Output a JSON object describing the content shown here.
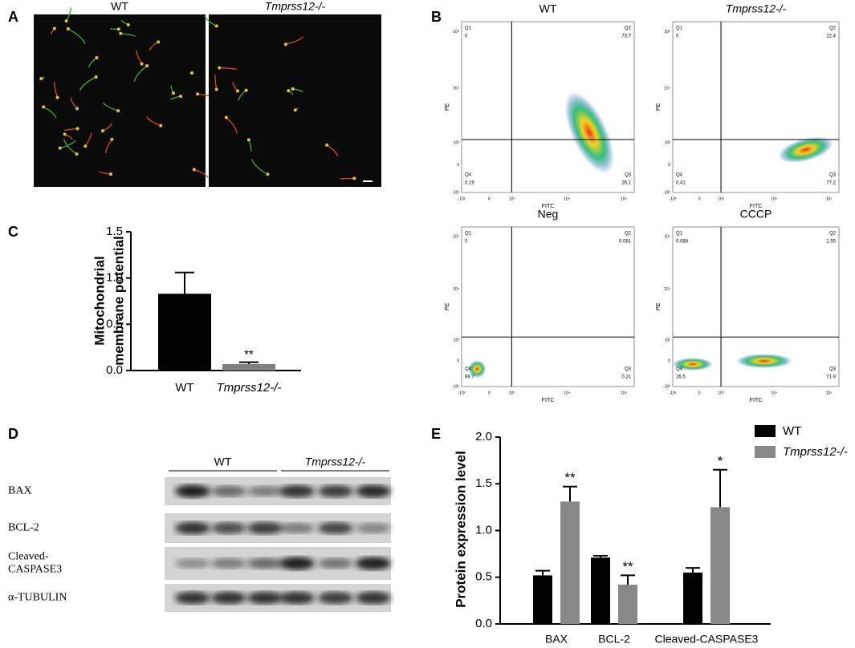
{
  "panel_labels": [
    "A",
    "B",
    "C",
    "D",
    "E"
  ],
  "panel_a": {
    "groups": [
      "WT",
      "Tmprss12-/-"
    ]
  },
  "panel_b": {
    "x_label": "FITC",
    "y_label": "PE",
    "quadrant_names": [
      "Q1",
      "Q2",
      "Q3",
      "Q4"
    ],
    "tick_labels": [
      "-10³",
      "0",
      "10³",
      "10⁴",
      "10⁵"
    ],
    "plots": [
      {
        "title": "WT",
        "quadrants": [
          0,
          73.7,
          26.1,
          0.19
        ]
      },
      {
        "title": "Tmprss12-/-",
        "quadrants": [
          0,
          22.4,
          77.2,
          0.41
        ]
      },
      {
        "title": "Neg",
        "quadrants": [
          0,
          0.081,
          0.21,
          99.7
        ]
      },
      {
        "title": "CCCP",
        "quadrants": [
          0.088,
          1.55,
          71.9,
          26.5
        ]
      }
    ]
  },
  "panel_d": {
    "groups": [
      "WT",
      "Tmprss12-/-"
    ],
    "proteins": [
      [
        "BAX"
      ],
      [
        "BCL-2"
      ],
      [
        "Cleaved-",
        "CASPASE3"
      ],
      [
        "α-TUBULIN"
      ]
    ]
  },
  "chart_data": [
    {
      "type": "bar",
      "y_label": [
        "Mitochondrial",
        "membrane potential"
      ],
      "categories": [
        "WT",
        "Tmprss12-/-"
      ],
      "values": [
        0.83,
        0.07
      ],
      "errors": [
        0.23,
        0.02
      ],
      "colors": [
        "#000000",
        "#808080"
      ],
      "annotations": [
        null,
        "**"
      ],
      "ylim": [
        0,
        1.5
      ],
      "yticks": [
        {
          "value": 0,
          "label": "0.0"
        },
        {
          "value": 0.5,
          "label": "0.5"
        },
        {
          "value": 1,
          "label": "1.0"
        },
        {
          "value": 1.5,
          "label": "1.5"
        }
      ]
    },
    {
      "type": "grouped-bar",
      "y_label": "Protein expression level",
      "categories": [
        "BAX",
        "BCL-2",
        "Cleaved-CASPASE3"
      ],
      "series": [
        {
          "name": "WT",
          "color": "#000000",
          "values": [
            0.52,
            0.71,
            0.55
          ],
          "errors": [
            0.05,
            0.02,
            0.05
          ],
          "annotations": [
            null,
            null,
            null
          ]
        },
        {
          "name": "Tmprss12-/-",
          "color": "#888888",
          "values": [
            1.31,
            0.42,
            1.25
          ],
          "errors": [
            0.16,
            0.1,
            0.4
          ],
          "annotations": [
            "**",
            "**",
            "*"
          ]
        }
      ],
      "legend": "top-right",
      "ylim": [
        0,
        2
      ],
      "yticks": [
        {
          "value": 0,
          "label": "0.0"
        },
        {
          "value": 0.5,
          "label": "0.5"
        },
        {
          "value": 1,
          "label": "1.0"
        },
        {
          "value": 1.5,
          "label": "1.5"
        },
        {
          "value": 2,
          "label": "2.0"
        }
      ]
    }
  ]
}
